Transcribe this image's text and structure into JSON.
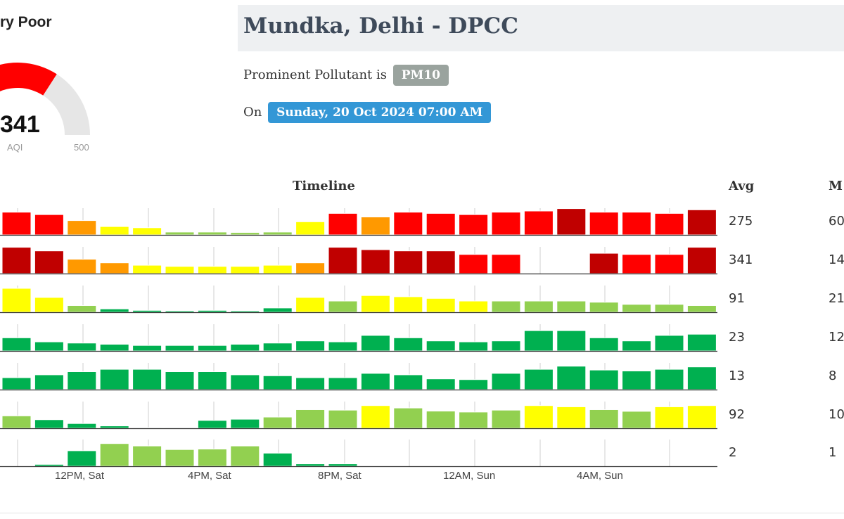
{
  "gauge": {
    "category": "ry Poor",
    "value": "341",
    "label": "AQI",
    "max": "500",
    "fill_fraction": 0.682,
    "fill_color": "#ff0000",
    "track_color": "#e6e6e6"
  },
  "station": {
    "title": "Mundka, Delhi - DPCC",
    "pollutant_prefix": "Prominent Pollutant is",
    "pollutant": "PM10",
    "date_prefix": "On",
    "date": "Sunday, 20 Oct 2024 07:00 AM"
  },
  "timeline": {
    "header": "Timeline",
    "avg_header": "Avg",
    "max_header": "M",
    "axis_labels": [
      "12PM, Sat",
      "4PM, Sat",
      "8PM, Sat",
      "12AM, Sun",
      "4AM, Sun"
    ],
    "colors": {
      "good": "#00b050",
      "satisfactory": "#92d050",
      "moderate": "#ffff00",
      "poor": "#ff9900",
      "very_poor": "#ff0000",
      "severe": "#c00000"
    },
    "rows": [
      {
        "avg": "275",
        "max": "60",
        "levels": [
          0.95,
          0.85,
          0.6,
          0.35,
          0.3,
          0.12,
          0.12,
          0.1,
          0.12,
          0.55,
          0.9,
          0.75,
          0.95,
          0.9,
          0.85,
          0.95,
          1.0,
          1.1,
          0.95,
          0.95,
          0.9,
          1.05
        ],
        "colors": [
          "very_poor",
          "very_poor",
          "poor",
          "moderate",
          "moderate",
          "satisfactory",
          "satisfactory",
          "satisfactory",
          "satisfactory",
          "moderate",
          "very_poor",
          "poor",
          "very_poor",
          "very_poor",
          "very_poor",
          "very_poor",
          "very_poor",
          "severe",
          "very_poor",
          "very_poor",
          "very_poor",
          "severe"
        ]
      },
      {
        "avg": "341",
        "max": "14",
        "levels": [
          1.1,
          0.95,
          0.6,
          0.45,
          0.35,
          0.3,
          0.3,
          0.3,
          0.35,
          0.45,
          1.1,
          1.0,
          0.95,
          0.95,
          0.8,
          0.8,
          0,
          0,
          0.85,
          0.8,
          0.8,
          1.1
        ],
        "colors": [
          "severe",
          "severe",
          "poor",
          "poor",
          "moderate",
          "moderate",
          "moderate",
          "moderate",
          "moderate",
          "poor",
          "severe",
          "severe",
          "severe",
          "severe",
          "very_poor",
          "very_poor",
          "good",
          "good",
          "severe",
          "very_poor",
          "very_poor",
          "severe"
        ]
      },
      {
        "avg": "91",
        "max": "21",
        "levels": [
          1.0,
          0.62,
          0.28,
          0.14,
          0.08,
          0.06,
          0.08,
          0.06,
          0.18,
          0.62,
          0.47,
          0.7,
          0.65,
          0.58,
          0.47,
          0.47,
          0.47,
          0.47,
          0.42,
          0.33,
          0.33,
          0.28
        ],
        "colors": [
          "moderate",
          "moderate",
          "satisfactory",
          "good",
          "good",
          "good",
          "good",
          "good",
          "good",
          "moderate",
          "satisfactory",
          "moderate",
          "moderate",
          "moderate",
          "moderate",
          "satisfactory",
          "satisfactory",
          "satisfactory",
          "satisfactory",
          "satisfactory",
          "satisfactory",
          "satisfactory"
        ]
      },
      {
        "avg": "23",
        "max": "12",
        "levels": [
          0.55,
          0.38,
          0.33,
          0.28,
          0.23,
          0.23,
          0.23,
          0.28,
          0.33,
          0.42,
          0.38,
          0.65,
          0.55,
          0.42,
          0.38,
          0.42,
          0.85,
          0.85,
          0.55,
          0.42,
          0.65,
          0.7
        ],
        "colors": [
          "good",
          "good",
          "good",
          "good",
          "good",
          "good",
          "good",
          "good",
          "good",
          "good",
          "good",
          "good",
          "good",
          "good",
          "good",
          "good",
          "good",
          "good",
          "good",
          "good",
          "good",
          "good"
        ]
      },
      {
        "avg": "13",
        "max": "8",
        "levels": [
          0.5,
          0.62,
          0.75,
          0.85,
          0.85,
          0.75,
          0.75,
          0.62,
          0.58,
          0.5,
          0.5,
          0.68,
          0.62,
          0.45,
          0.42,
          0.68,
          0.85,
          0.98,
          0.82,
          0.78,
          0.85,
          0.95
        ],
        "colors": [
          "good",
          "good",
          "good",
          "good",
          "good",
          "good",
          "good",
          "good",
          "good",
          "good",
          "good",
          "good",
          "good",
          "good",
          "good",
          "good",
          "good",
          "good",
          "good",
          "good",
          "good",
          "good"
        ]
      },
      {
        "avg": "92",
        "max": "10",
        "levels": [
          0.52,
          0.36,
          0.2,
          0.1,
          0.03,
          0.03,
          0.33,
          0.38,
          0.47,
          0.78,
          0.76,
          0.95,
          0.85,
          0.72,
          0.68,
          0.76,
          0.95,
          0.9,
          0.78,
          0.71,
          0.9,
          0.95
        ],
        "colors": [
          "satisfactory",
          "good",
          "good",
          "good",
          "good",
          "good",
          "good",
          "good",
          "satisfactory",
          "satisfactory",
          "satisfactory",
          "moderate",
          "satisfactory",
          "satisfactory",
          "satisfactory",
          "satisfactory",
          "moderate",
          "moderate",
          "satisfactory",
          "satisfactory",
          "moderate",
          "moderate"
        ]
      },
      {
        "avg": "2",
        "max": "1",
        "levels": [
          0,
          0.08,
          0.65,
          0.95,
          0.85,
          0.7,
          0.72,
          0.85,
          0.55,
          0.1,
          0.1,
          0,
          0,
          0,
          0,
          0,
          0,
          0,
          0,
          0,
          0,
          0
        ],
        "colors": [
          "good",
          "good",
          "good",
          "satisfactory",
          "satisfactory",
          "satisfactory",
          "satisfactory",
          "satisfactory",
          "good",
          "good",
          "good",
          "good",
          "good",
          "good",
          "good",
          "good",
          "good",
          "good",
          "good",
          "good",
          "good",
          "good"
        ]
      }
    ]
  }
}
